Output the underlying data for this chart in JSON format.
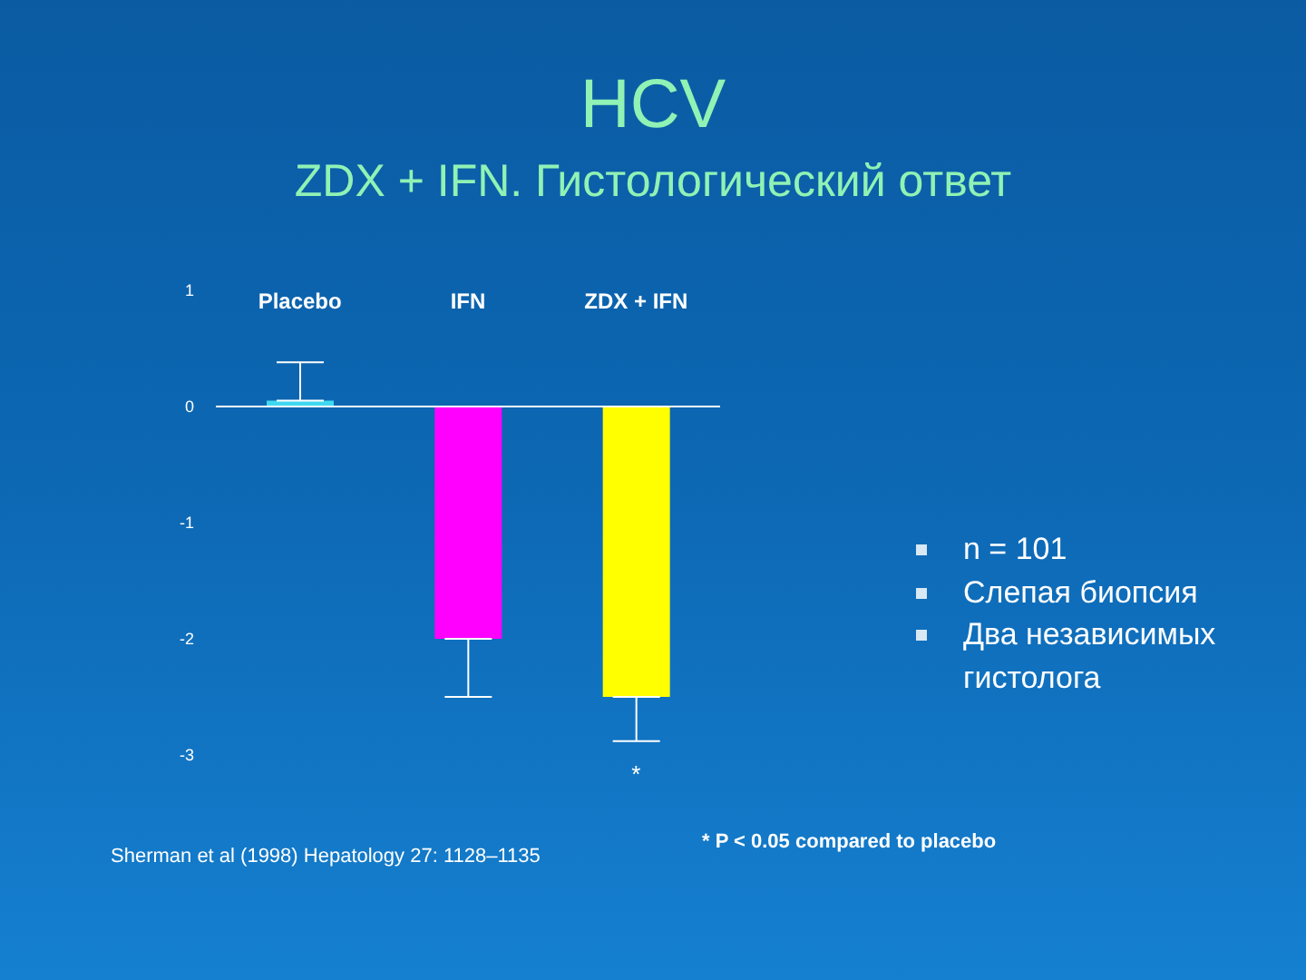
{
  "chart_data": {
    "type": "bar",
    "title": "HCV",
    "subtitle": "ZDX + IFN. Гистологический ответ",
    "categories": [
      "Placebo",
      "IFN",
      "ZDX + IFN"
    ],
    "values": [
      0.05,
      -2,
      -2.5
    ],
    "colors": [
      "#40d8f0",
      "#ff00ff",
      "#ffff00"
    ],
    "errors": [
      [
        0.05,
        0.38
      ],
      [
        -2.5,
        -2
      ],
      [
        -2.88,
        -2.5
      ]
    ],
    "ylim": [
      -3,
      1
    ],
    "yticks": [
      -3,
      -2,
      -1,
      0,
      1
    ],
    "annotations": [
      "*",
      "n = 101",
      "Слепая биопсия",
      "Два независимых гистолога",
      "Sherman et al (1998) Hepatology 27: 1128–1135",
      "* P < 0.05 compared to placebo"
    ]
  }
}
